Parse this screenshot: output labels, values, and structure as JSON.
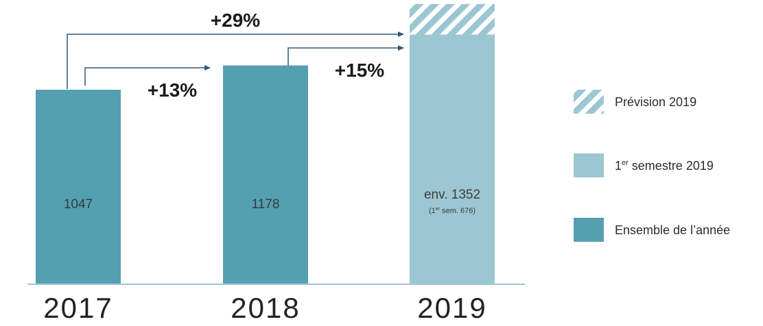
{
  "chart_data": {
    "type": "bar",
    "categories": [
      "2017",
      "2018",
      "2019"
    ],
    "values": [
      1047,
      1178,
      1352
    ],
    "value_labels": [
      "1047",
      "1178",
      "env. 1352"
    ],
    "sub_value_labels": [
      "",
      "",
      "(1er sem. 676)"
    ],
    "first_semester_2019": 676,
    "forecast_2019_top": 1510,
    "growth_annotations": [
      {
        "label": "+13%",
        "from": "2017",
        "to": "2018"
      },
      {
        "label": "+15%",
        "from": "2018",
        "to": "2019"
      },
      {
        "label": "+29%",
        "from": "2017",
        "to": "2019"
      }
    ],
    "legend": [
      {
        "key": "forecast",
        "label": "Prévision 2019",
        "color": "#9cc6d1",
        "pattern": "hatched"
      },
      {
        "key": "semester",
        "label": "1er semestre 2019",
        "color": "#9cc6d1",
        "pattern": "solid"
      },
      {
        "key": "year",
        "label": "Ensemble de l’année",
        "color": "#55a0b0",
        "pattern": "solid"
      }
    ],
    "legend_position": "right",
    "grid": false,
    "colors": {
      "year": "#55a0b0",
      "semester": "#9cc6d1",
      "arrow": "#2c5a78",
      "axis": "#9ec6d3",
      "text": "#1a1a1a"
    }
  }
}
